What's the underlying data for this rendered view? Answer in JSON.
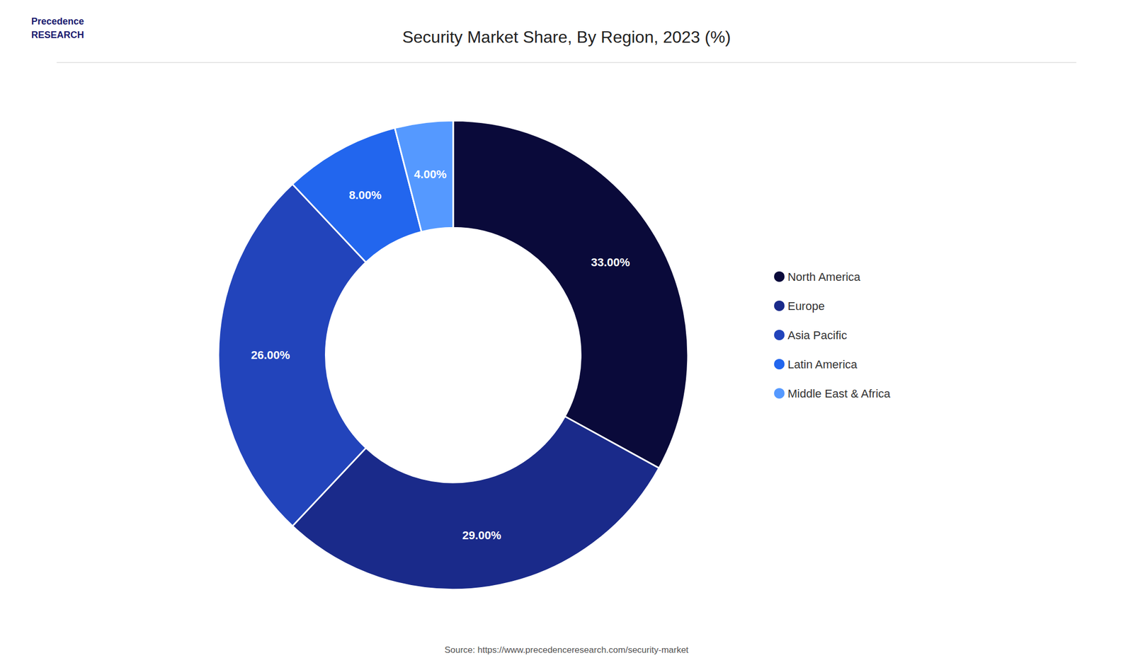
{
  "chart_data": {
    "type": "pie",
    "title": "Security Market Share, By Region, 2023 (%)",
    "categories": [
      "North America",
      "Europe",
      "Asia Pacific",
      "Latin America",
      "Middle East & Africa"
    ],
    "values": [
      33.0,
      29.0,
      26.0,
      8.0,
      4.0
    ],
    "value_labels": [
      "33.00%",
      "29.00%",
      "26.00%",
      "8.00%",
      "4.00%"
    ],
    "colors": [
      "#0a0a3a",
      "#1a2a8a",
      "#2244bb",
      "#2266ee",
      "#5599ff"
    ],
    "data_labels": true,
    "legend": "right",
    "annotations": [
      "Source: https://www.precedenceresearch.com/security-market",
      "Precedence\nRESEARCH"
    ]
  }
}
